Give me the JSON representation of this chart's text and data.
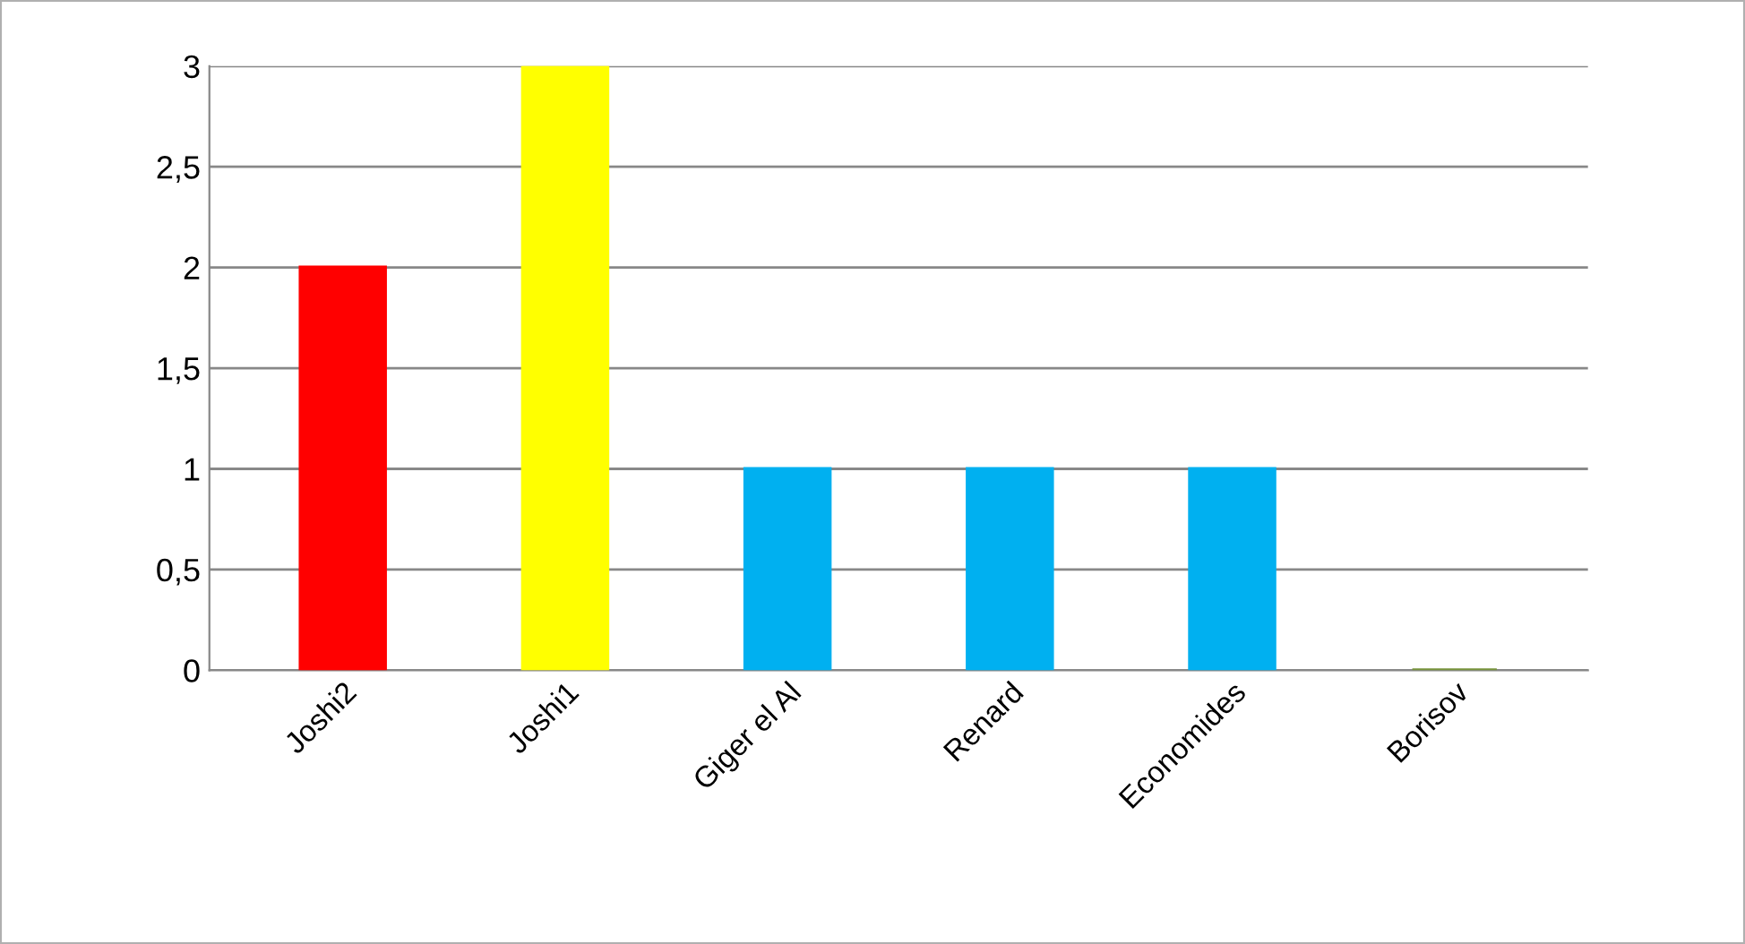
{
  "chart_data": {
    "type": "bar",
    "categories": [
      "Joshi2",
      "Joshi1",
      "Giger el Al",
      "Renard",
      "Economides",
      "Borisov"
    ],
    "values": [
      2,
      3,
      1,
      1,
      1,
      0
    ],
    "colors": [
      "#ff0000",
      "#ffff00",
      "#00b0f0",
      "#00b0f0",
      "#00b0f0",
      "#77933c"
    ],
    "ylim": [
      0,
      3
    ],
    "yticks": [
      0,
      {
        "value": 0.5,
        "label": "0,5"
      },
      1,
      {
        "value": 1.5,
        "label": "1,5"
      },
      2,
      {
        "value": 2.5,
        "label": "2,5"
      },
      3
    ],
    "grid": "y",
    "legend": false
  }
}
